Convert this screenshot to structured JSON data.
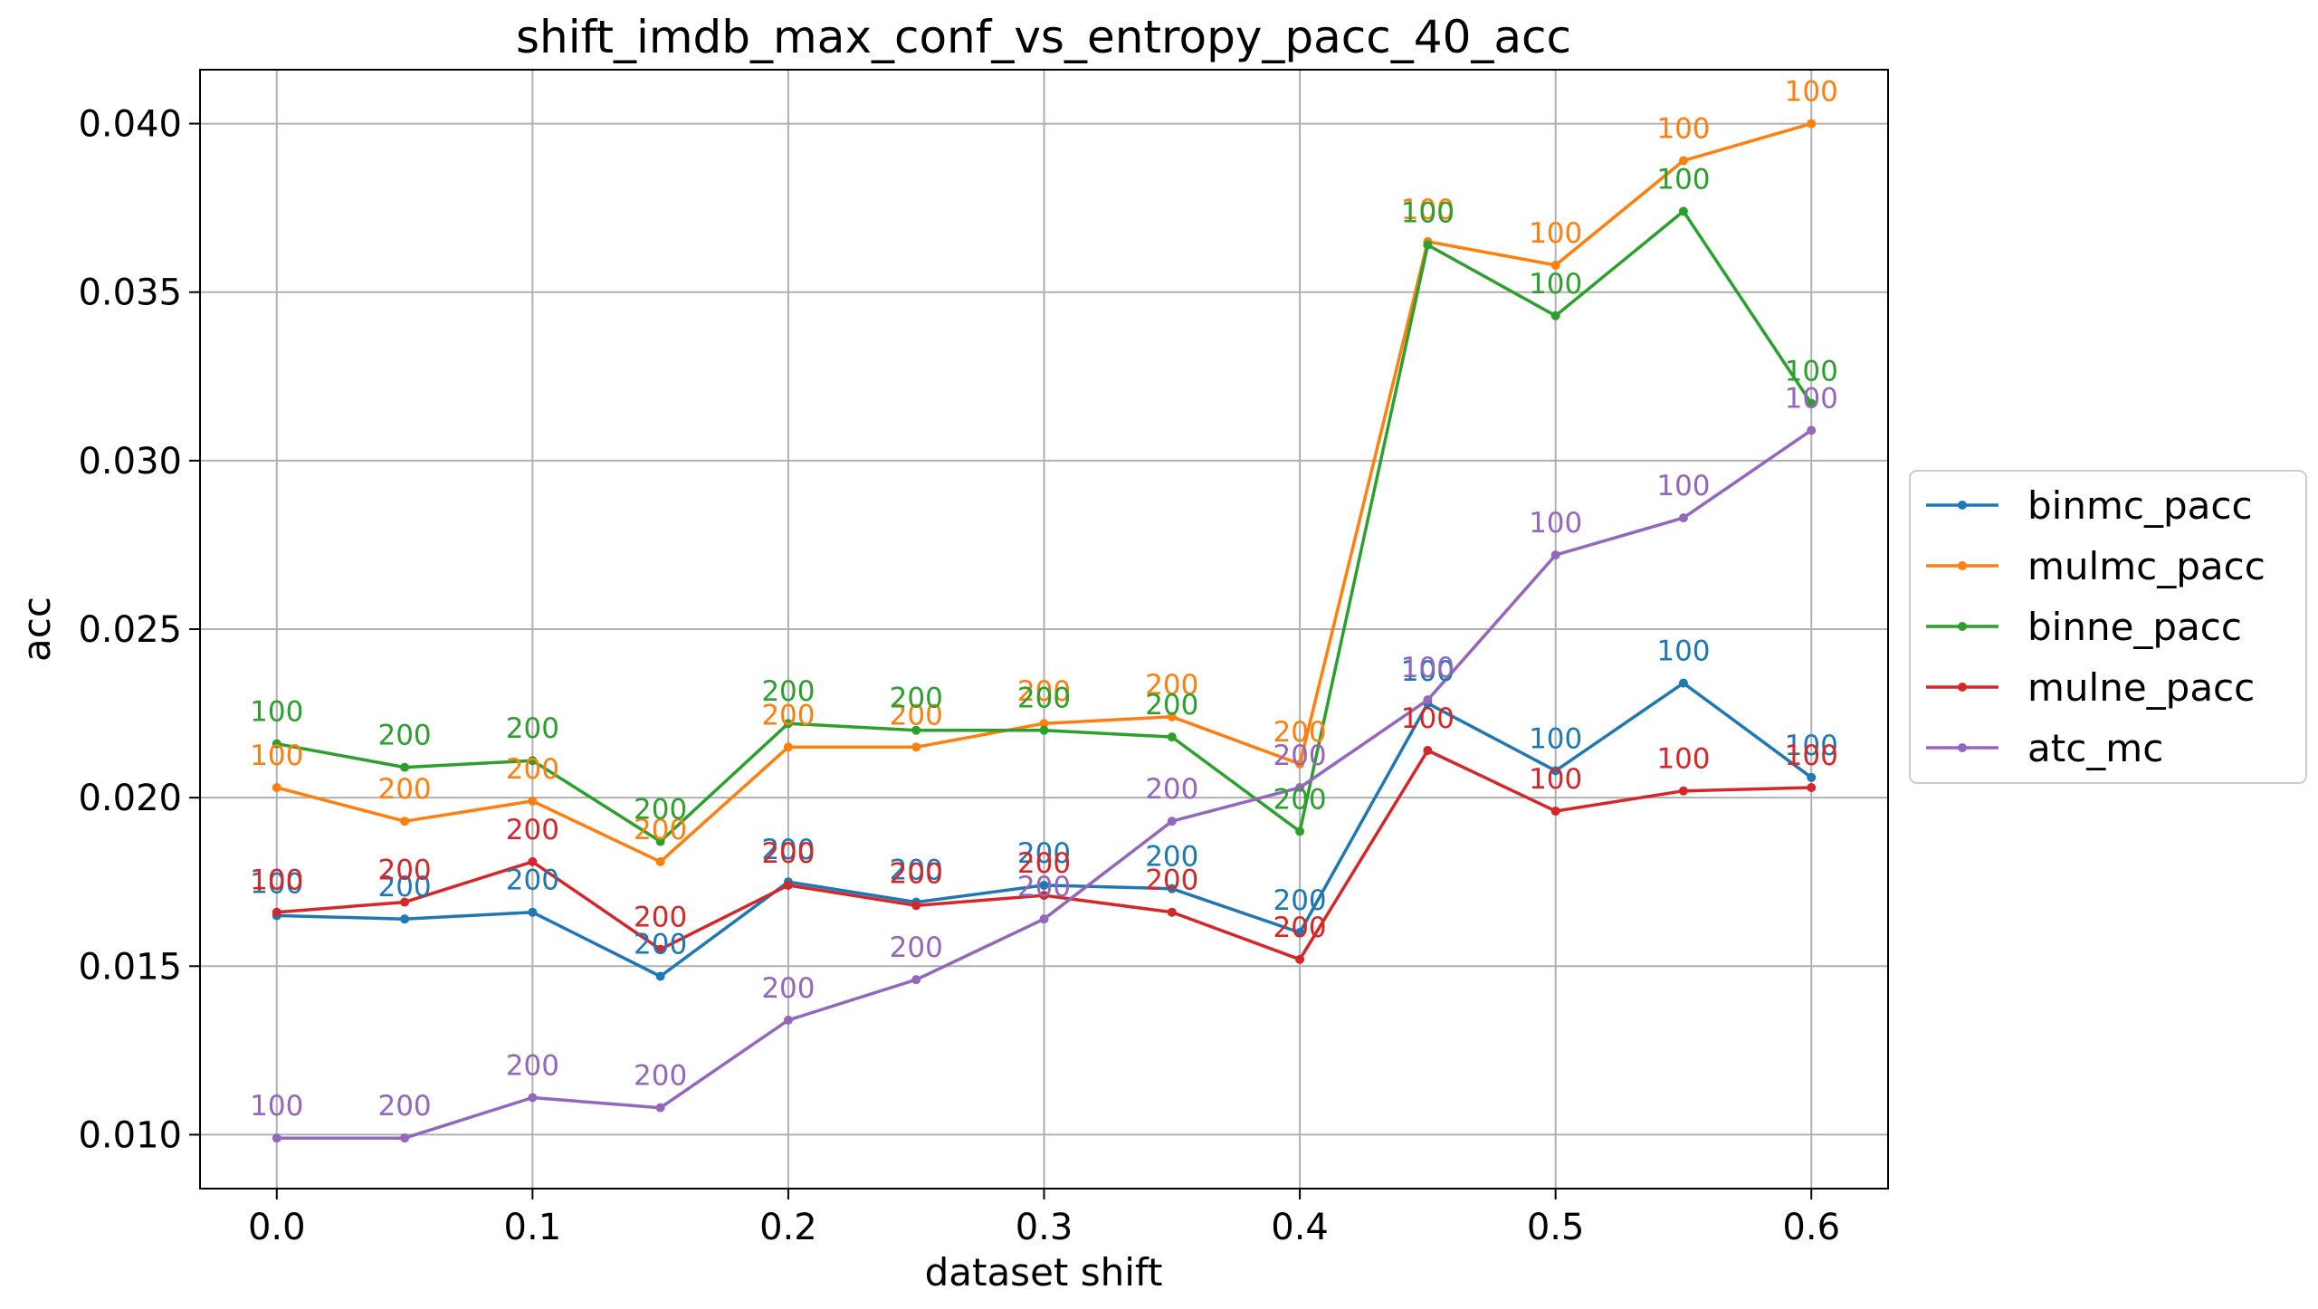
{
  "chart_data": {
    "type": "line",
    "title": "shift_imdb_max_conf_vs_entropy_pacc_40_acc",
    "xlabel": "dataset shift",
    "ylabel": "acc",
    "xlim": [
      -0.03,
      0.63
    ],
    "ylim": [
      0.0084,
      0.0416
    ],
    "xticks": [
      "0.0",
      "0.1",
      "0.2",
      "0.3",
      "0.4",
      "0.5",
      "0.6"
    ],
    "yticks": [
      "0.010",
      "0.015",
      "0.020",
      "0.025",
      "0.030",
      "0.035",
      "0.040"
    ],
    "grid": true,
    "legend_position": "right-outside",
    "x": [
      0.0,
      0.05,
      0.1,
      0.15,
      0.2,
      0.25,
      0.3,
      0.35,
      0.4,
      0.45,
      0.5,
      0.55,
      0.6
    ],
    "series": [
      {
        "name": "binmc_pacc",
        "color": "#1f77b4",
        "values": [
          0.0165,
          0.0164,
          0.0166,
          0.0147,
          0.0175,
          0.0169,
          0.0174,
          0.0173,
          0.016,
          0.0228,
          0.0208,
          0.0234,
          0.0206
        ],
        "labels": [
          "100",
          "200",
          "200",
          "200",
          "200",
          "200",
          "200",
          "200",
          "200",
          "100",
          "100",
          "100",
          "100"
        ]
      },
      {
        "name": "mulmc_pacc",
        "color": "#ff7f0e",
        "values": [
          0.0203,
          0.0193,
          0.0199,
          0.0181,
          0.0215,
          0.0215,
          0.0222,
          0.0224,
          0.021,
          0.0365,
          0.0358,
          0.0389,
          0.04
        ],
        "labels": [
          "100",
          "200",
          "200",
          "200",
          "200",
          "200",
          "200",
          "200",
          "200",
          "100",
          "100",
          "100",
          "100"
        ]
      },
      {
        "name": "binne_pacc",
        "color": "#2ca02c",
        "values": [
          0.0216,
          0.0209,
          0.0211,
          0.0187,
          0.0222,
          0.022,
          0.022,
          0.0218,
          0.019,
          0.0364,
          0.0343,
          0.0374,
          0.0317
        ],
        "labels": [
          "100",
          "200",
          "200",
          "200",
          "200",
          "200",
          "200",
          "200",
          "200",
          "100",
          "100",
          "100",
          "100"
        ]
      },
      {
        "name": "mulne_pacc",
        "color": "#d62728",
        "values": [
          0.0166,
          0.0169,
          0.0181,
          0.0155,
          0.0174,
          0.0168,
          0.0171,
          0.0166,
          0.0152,
          0.0214,
          0.0196,
          0.0202,
          0.0203
        ],
        "labels": [
          "100",
          "200",
          "200",
          "200",
          "200",
          "200",
          "200",
          "200",
          "200",
          "100",
          "100",
          "100",
          "100"
        ]
      },
      {
        "name": "atc_mc",
        "color": "#9467bd",
        "values": [
          0.0099,
          0.0099,
          0.0111,
          0.0108,
          0.0134,
          0.0146,
          0.0164,
          0.0193,
          0.0203,
          0.0229,
          0.0272,
          0.0283,
          0.0309
        ],
        "labels": [
          "100",
          "200",
          "200",
          "200",
          "200",
          "200",
          "200",
          "200",
          "200",
          "100",
          "100",
          "100",
          "100"
        ]
      }
    ]
  }
}
